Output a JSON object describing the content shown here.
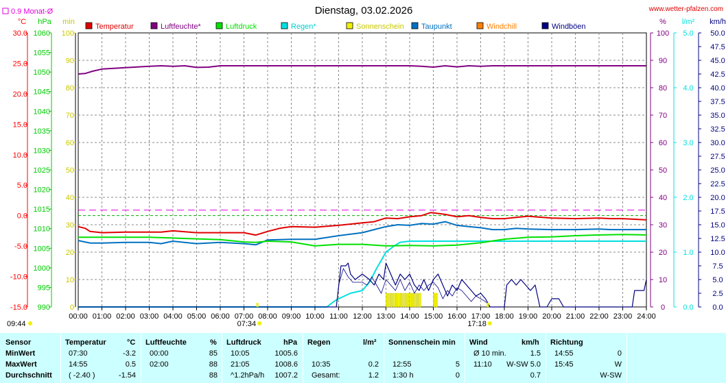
{
  "site_label": "www.wetter-pfalzen.com",
  "chart_data": {
    "type": "line",
    "title": "Dienstag, 03.02.2026",
    "monthly_avg_label": "0.9 Monat-Ø",
    "monthly_avg_value": 0.9,
    "grid": true,
    "xlim": [
      0,
      24
    ],
    "x_tick_labels": [
      "00:00",
      "01:00",
      "02:00",
      "03:00",
      "04:00",
      "05:00",
      "06:00",
      "07:00",
      "08:00",
      "09:00",
      "10:00",
      "11:00",
      "12:00",
      "13:00",
      "14:00",
      "15:00",
      "16:00",
      "17:00",
      "18:00",
      "19:00",
      "20:00",
      "21:00",
      "22:00",
      "23:00",
      "24:00"
    ],
    "axes": {
      "temperature": {
        "unit": "°C",
        "min": -15,
        "max": 30,
        "step": 5,
        "ticks": [
          "30.0",
          "25.0",
          "20.0",
          "15.0",
          "10.0",
          "5.0",
          "0.0",
          "-5.0",
          "-10.0",
          "-15.0"
        ],
        "color": "#ff0000"
      },
      "pressure": {
        "unit": "hPa",
        "min": 990,
        "max": 1060,
        "step": 5,
        "ticks": [
          "1060",
          "1055",
          "1050",
          "1045",
          "1040",
          "1035",
          "1030",
          "1025",
          "1020",
          "1015",
          "1010",
          "1005",
          "1000",
          "995",
          "990"
        ],
        "color": "#00cc00"
      },
      "sunshine": {
        "unit": "min",
        "min": 0,
        "max": 100,
        "step": 10,
        "ticks": [
          "100",
          "90",
          "80",
          "70",
          "60",
          "50",
          "40",
          "30",
          "20",
          "10",
          "0"
        ],
        "color": "#e0e000"
      },
      "humidity": {
        "unit": "%",
        "min": 0,
        "max": 100,
        "step": 10,
        "ticks": [
          "100",
          "90",
          "80",
          "70",
          "60",
          "50",
          "40",
          "30",
          "20",
          "10",
          "0"
        ],
        "color": "#800080"
      },
      "rain": {
        "unit": "l/m²",
        "min": 0,
        "max": 5,
        "step": 1,
        "ticks": [
          "5.0",
          "4.0",
          "3.0",
          "2.0",
          "1.0",
          "0.0"
        ],
        "color": "#00e0e0"
      },
      "wind": {
        "unit": "km/h",
        "min": 0,
        "max": 50,
        "step": 2.5,
        "ticks": [
          "50.0",
          "47.5",
          "45.0",
          "42.5",
          "40.0",
          "37.5",
          "35.0",
          "32.5",
          "30.0",
          "27.5",
          "25.0",
          "22.5",
          "20.0",
          "17.5",
          "15.0",
          "12.5",
          "10.0",
          "7.5",
          "5.0",
          "2.5",
          "0.0"
        ],
        "color": "#000080"
      }
    },
    "sunrise": {
      "label": "07:34",
      "x": 7.57
    },
    "sunset": {
      "label": "17:18",
      "x": 17.3
    },
    "prev_sunset_label": "09:44",
    "series": [
      {
        "name": "Temperatur",
        "color": "#e00000",
        "axis": "temperature",
        "points": [
          [
            0,
            -1.8
          ],
          [
            0.3,
            -2.1
          ],
          [
            0.5,
            -2.6
          ],
          [
            1,
            -2.8
          ],
          [
            2,
            -2.7
          ],
          [
            3,
            -2.7
          ],
          [
            3.5,
            -2.7
          ],
          [
            4,
            -2.5
          ],
          [
            5,
            -2.8
          ],
          [
            6,
            -2.8
          ],
          [
            7,
            -2.8
          ],
          [
            7.5,
            -3.2
          ],
          [
            8,
            -2.6
          ],
          [
            8.5,
            -2.1
          ],
          [
            9,
            -1.8
          ],
          [
            10,
            -1.9
          ],
          [
            11,
            -1.6
          ],
          [
            12,
            -1.2
          ],
          [
            12.5,
            -1.0
          ],
          [
            13,
            -0.4
          ],
          [
            13.5,
            -0.5
          ],
          [
            14,
            -0.2
          ],
          [
            14.5,
            0.0
          ],
          [
            14.9,
            0.5
          ],
          [
            15.5,
            0.2
          ],
          [
            16,
            -0.2
          ],
          [
            16.5,
            0.0
          ],
          [
            17,
            -0.3
          ],
          [
            17.5,
            -0.5
          ],
          [
            18,
            -0.5
          ],
          [
            18.5,
            -0.3
          ],
          [
            19,
            -0.1
          ],
          [
            20,
            -0.4
          ],
          [
            21,
            -0.5
          ],
          [
            22,
            -0.4
          ],
          [
            22.5,
            -0.5
          ],
          [
            23,
            -0.5
          ],
          [
            24,
            -0.7
          ]
        ]
      },
      {
        "name": "Luftfeuchte*",
        "color": "#800080",
        "axis": "humidity",
        "points": [
          [
            0,
            85
          ],
          [
            0.3,
            85.2
          ],
          [
            0.6,
            86
          ],
          [
            1,
            86.8
          ],
          [
            2,
            87.3
          ],
          [
            3,
            87.8
          ],
          [
            3.5,
            88
          ],
          [
            4,
            87.8
          ],
          [
            4.5,
            88
          ],
          [
            5,
            87.4
          ],
          [
            5.5,
            87.5
          ],
          [
            6,
            88
          ],
          [
            7,
            88
          ],
          [
            8,
            88
          ],
          [
            9,
            88
          ],
          [
            10,
            88
          ],
          [
            11,
            88
          ],
          [
            12,
            88
          ],
          [
            13,
            88
          ],
          [
            14,
            88
          ],
          [
            14.5,
            87.8
          ],
          [
            15,
            87.5
          ],
          [
            15.5,
            88
          ],
          [
            16,
            87.6
          ],
          [
            16.5,
            88
          ],
          [
            17,
            87.8
          ],
          [
            17.5,
            88
          ],
          [
            18,
            88
          ],
          [
            19,
            88
          ],
          [
            20,
            88
          ],
          [
            21,
            88
          ],
          [
            22,
            88
          ],
          [
            23,
            88
          ],
          [
            24,
            88
          ]
        ]
      },
      {
        "name": "Luftdruck",
        "color": "#00e000",
        "axis": "pressure",
        "points": [
          [
            0,
            1007.8
          ],
          [
            1,
            1007.8
          ],
          [
            2,
            1007.8
          ],
          [
            3,
            1007.8
          ],
          [
            4,
            1007.6
          ],
          [
            5,
            1007.4
          ],
          [
            6,
            1007.2
          ],
          [
            7,
            1006.6
          ],
          [
            7.5,
            1006.5
          ],
          [
            8,
            1006.8
          ],
          [
            9,
            1006.6
          ],
          [
            10,
            1005.6
          ],
          [
            10.5,
            1005.8
          ],
          [
            11,
            1006.0
          ],
          [
            12,
            1006.0
          ],
          [
            13,
            1005.6
          ],
          [
            14,
            1005.7
          ],
          [
            15,
            1005.6
          ],
          [
            16,
            1005.8
          ],
          [
            17,
            1006.4
          ],
          [
            18,
            1007.3
          ],
          [
            19,
            1007.8
          ],
          [
            20,
            1007.9
          ],
          [
            21,
            1008.2
          ],
          [
            22,
            1008.4
          ],
          [
            23,
            1008.5
          ],
          [
            24,
            1008.4
          ]
        ]
      },
      {
        "name": "Regen*",
        "color": "#00e0e0",
        "axis": "rain",
        "points": [
          [
            0,
            0
          ],
          [
            10.5,
            0
          ],
          [
            10.8,
            0.1
          ],
          [
            11,
            0.15
          ],
          [
            11.5,
            0.25
          ],
          [
            12,
            0.3
          ],
          [
            12.3,
            0.45
          ],
          [
            12.6,
            0.7
          ],
          [
            13,
            1.0
          ],
          [
            13.3,
            1.1
          ],
          [
            13.6,
            1.18
          ],
          [
            14,
            1.2
          ],
          [
            18,
            1.2
          ],
          [
            24,
            1.2
          ]
        ]
      },
      {
        "name": "Sonnenschein",
        "color": "#f0f000",
        "axis": "sunshine",
        "points": []
      },
      {
        "name": "Taupunkt",
        "color": "#0070c0",
        "axis": "temperature",
        "points": [
          [
            0,
            -4.1
          ],
          [
            0.5,
            -4.5
          ],
          [
            1,
            -4.5
          ],
          [
            2,
            -4.4
          ],
          [
            3,
            -4.4
          ],
          [
            3.5,
            -4.6
          ],
          [
            4,
            -4.2
          ],
          [
            5,
            -4.6
          ],
          [
            6,
            -4.4
          ],
          [
            7,
            -4.6
          ],
          [
            7.5,
            -4.8
          ],
          [
            8,
            -4.0
          ],
          [
            9,
            -3.9
          ],
          [
            10,
            -3.9
          ],
          [
            11,
            -3.3
          ],
          [
            12,
            -2.8
          ],
          [
            12.5,
            -2.3
          ],
          [
            13,
            -1.8
          ],
          [
            13.5,
            -1.5
          ],
          [
            14,
            -1.6
          ],
          [
            14.5,
            -1.3
          ],
          [
            15,
            -1.4
          ],
          [
            15.5,
            -1.0
          ],
          [
            16,
            -1.6
          ],
          [
            16.5,
            -1.8
          ],
          [
            17,
            -2.0
          ],
          [
            17.5,
            -2.3
          ],
          [
            18,
            -2.3
          ],
          [
            18.5,
            -2.1
          ],
          [
            19,
            -2.2
          ],
          [
            20,
            -2.3
          ],
          [
            21,
            -2.3
          ],
          [
            22,
            -2.2
          ],
          [
            22.5,
            -2.3
          ],
          [
            23,
            -2.3
          ],
          [
            24,
            -2.3
          ]
        ]
      },
      {
        "name": "Windchill",
        "color": "#ff8000",
        "axis": "temperature",
        "points": []
      },
      {
        "name": "Windböen",
        "color": "#000080",
        "axis": "wind",
        "points": [
          [
            0,
            0
          ],
          [
            10.5,
            0
          ],
          [
            10.9,
            0
          ],
          [
            11.1,
            7.5
          ],
          [
            11.3,
            7.5
          ],
          [
            11.4,
            8
          ],
          [
            11.5,
            6
          ],
          [
            11.7,
            5
          ],
          [
            12,
            6
          ],
          [
            12.3,
            5
          ],
          [
            12.5,
            4
          ],
          [
            12.7,
            6
          ],
          [
            12.9,
            5
          ],
          [
            13,
            8
          ],
          [
            13.2,
            6
          ],
          [
            13.4,
            4
          ],
          [
            13.6,
            6
          ],
          [
            13.8,
            5
          ],
          [
            14,
            6
          ],
          [
            14.2,
            4
          ],
          [
            14.4,
            3
          ],
          [
            14.6,
            5
          ],
          [
            14.8,
            3
          ],
          [
            15,
            5
          ],
          [
            15.2,
            6
          ],
          [
            15.4,
            4
          ],
          [
            15.6,
            2
          ],
          [
            15.8,
            4
          ],
          [
            16,
            3
          ],
          [
            16.2,
            5
          ],
          [
            16.4,
            4
          ],
          [
            16.6,
            3
          ],
          [
            16.8,
            2
          ],
          [
            17,
            2.5
          ],
          [
            17.2,
            1.5
          ],
          [
            17.4,
            0
          ],
          [
            18,
            0
          ],
          [
            18.1,
            4
          ],
          [
            18.3,
            5
          ],
          [
            18.5,
            4
          ],
          [
            18.7,
            5
          ],
          [
            18.9,
            4
          ],
          [
            19.1,
            3
          ],
          [
            19.3,
            4
          ],
          [
            19.5,
            0
          ],
          [
            19.8,
            0
          ],
          [
            20,
            1.5
          ],
          [
            20.3,
            1.5
          ],
          [
            20.5,
            0
          ],
          [
            23.4,
            0
          ],
          [
            23.5,
            3
          ],
          [
            23.9,
            3
          ],
          [
            24,
            5
          ]
        ]
      }
    ],
    "wind_avg_points": [
      [
        11.0,
        4
      ],
      [
        11.2,
        7
      ],
      [
        11.4,
        5.5
      ],
      [
        11.6,
        4.5
      ],
      [
        11.8,
        4.5
      ],
      [
        12.0,
        4.5
      ],
      [
        12.2,
        4
      ],
      [
        12.4,
        5.5
      ],
      [
        12.6,
        4
      ],
      [
        12.8,
        2.5
      ],
      [
        13.0,
        5
      ],
      [
        13.2,
        4
      ],
      [
        13.4,
        3
      ],
      [
        13.6,
        5
      ],
      [
        13.8,
        3
      ],
      [
        14.0,
        4.5
      ],
      [
        14.2,
        2.5
      ],
      [
        14.4,
        4
      ],
      [
        14.6,
        3
      ],
      [
        14.8,
        4
      ],
      [
        15.0,
        4.5
      ],
      [
        15.2,
        3.5
      ],
      [
        15.4,
        1.5
      ],
      [
        15.6,
        3
      ],
      [
        15.8,
        2
      ],
      [
        16.0,
        3.5
      ],
      [
        16.2,
        3
      ],
      [
        16.4,
        2
      ],
      [
        16.6,
        1
      ],
      [
        16.8,
        2
      ],
      [
        17.0,
        1.5
      ],
      [
        17.2,
        1
      ],
      [
        17.4,
        0
      ]
    ],
    "sunshine_bars": [
      13.0,
      13.1,
      13.2,
      13.3,
      13.4,
      13.5,
      13.6,
      13.7,
      13.8,
      13.9,
      14.0,
      14.1,
      14.2,
      14.3,
      14.4,
      15.0,
      15.1
    ]
  },
  "stats": {
    "headers": {
      "sensor": "Sensor",
      "temp": "Temperatur",
      "temp_unit": "°C",
      "hum": "Luftfeuchte",
      "hum_unit": "%",
      "press": "Luftdruck",
      "press_unit": "hPa",
      "rain": "Regen",
      "rain_unit": "l/m²",
      "sun": "Sonnenschein min",
      "wind": "Wind",
      "wind_unit": "km/h",
      "dir": "Richtung"
    },
    "rows": [
      {
        "label": "MinWert",
        "temp_time": "07:30",
        "temp_val": "-3.2",
        "hum_time": "00:00",
        "hum_val": "85",
        "press_time": "10:05",
        "press_val": "1005.6",
        "rain_time": "",
        "rain_val": "",
        "sun_time": "",
        "sun_val": "",
        "wind_time": "Ø 10 min.",
        "wind_val": "1.5",
        "dir_time": "14:55",
        "dir_val": "0"
      },
      {
        "label": "MaxWert",
        "temp_time": "14:55",
        "temp_val": "0.5",
        "hum_time": "02:00",
        "hum_val": "88",
        "press_time": "21:05",
        "press_val": "1008.6",
        "rain_time": "10:35",
        "rain_val": "0.2",
        "sun_time": "12:55",
        "sun_val": "5",
        "wind_time": "11:10",
        "wind_val": "W-SW 5.0",
        "dir_time": "15:45",
        "dir_val": "W"
      },
      {
        "label": "Durchschnitt",
        "temp_time": "( -2.40 )",
        "temp_val": "-1.54",
        "hum_time": "",
        "hum_val": "88",
        "press_time": "^1.2hPa/h",
        "press_val": "1007.2",
        "rain_time": "Gesamt:",
        "rain_val": "1.2",
        "sun_time": "1:30 h",
        "sun_val": "0",
        "wind_time": "",
        "wind_val": "0.7",
        "dir_time": "",
        "dir_val": "W-SW"
      }
    ]
  }
}
